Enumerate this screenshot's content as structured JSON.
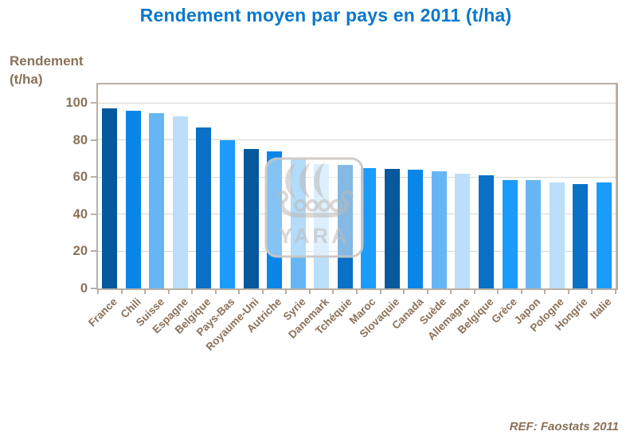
{
  "title": "Rendement moyen par pays en 2011 (t/ha)",
  "y_axis_title": {
    "line1": "Rendement",
    "line2": "(t/ha)"
  },
  "source_ref": "REF: Faostats 2011",
  "watermark": {
    "text": "YARA"
  },
  "theme": {
    "title_color": "#0C78CC",
    "axis_text_color": "#8A7158",
    "grid_color": "#DBD5CD",
    "border_color": "#B9AFA5",
    "background": "#FFFFFF",
    "bar_palette": [
      "#05599C",
      "#0A86E8",
      "#66B6F4",
      "#BBDEFB",
      "#0B71C6",
      "#1B9BFA"
    ]
  },
  "chart_data": {
    "type": "bar",
    "title": "Rendement moyen par pays en 2011 (t/ha)",
    "ylabel": "Rendement (t/ha)",
    "xlabel": "",
    "source": "REF: Faostats 2011",
    "categories": [
      "France",
      "Chili",
      "Suisse",
      "Espagne",
      "Belgique",
      "Pays-Bas",
      "Royaume-Uni",
      "Autriche",
      "Syrie",
      "Danemark",
      "Tchéquie",
      "Maroc",
      "Slovaquie",
      "Canada",
      "Suède",
      "Allemagne",
      "Belgique",
      "Grèce",
      "Japon",
      "Pologne",
      "Hongrie",
      "Italie"
    ],
    "values": [
      97,
      96,
      94.5,
      93,
      87,
      80,
      75,
      74,
      69.5,
      67,
      66.5,
      65,
      64.5,
      64,
      63,
      62,
      61,
      58.5,
      58.5,
      57,
      56.5,
      57
    ],
    "bar_colors": [
      "#05599C",
      "#0A86E8",
      "#66B6F4",
      "#BBDEFB",
      "#0B71C6",
      "#1B9BFA",
      "#05599C",
      "#0A86E8",
      "#66B6F4",
      "#BBDEFB",
      "#0B71C6",
      "#1B9BFA",
      "#05599C",
      "#0A86E8",
      "#66B6F4",
      "#BBDEFB",
      "#0B71C6",
      "#1B9BFA",
      "#66B6F4",
      "#BBDEFB",
      "#0B71C6",
      "#1B9BFA"
    ],
    "ylim": [
      0,
      110
    ],
    "yticks": [
      0,
      20,
      40,
      60,
      80,
      100
    ],
    "grid": true,
    "legend": false
  }
}
